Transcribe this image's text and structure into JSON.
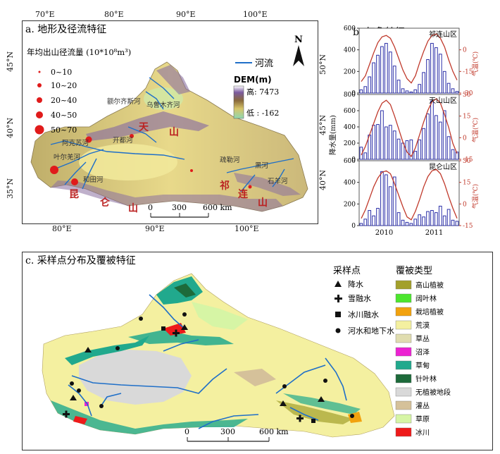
{
  "panel_a": {
    "title": "a. 地形及径流特征",
    "top_lon": [
      "70°E",
      "80°E",
      "90°E",
      "100°E"
    ],
    "bottom_lon": [
      "80°E",
      "90°E",
      "100°E"
    ],
    "left_lat": [
      "45°N",
      "40°N",
      "35°N"
    ],
    "right_lat": [
      "50°N",
      "45°N",
      "40°N"
    ],
    "runoff_title": "年均出山径流量 (10*10⁸m³)",
    "runoff_classes": [
      "0~10",
      "10~20",
      "20~40",
      "40~50",
      "50~70"
    ],
    "river_legend": "河流",
    "dem_title": "DEM(m)",
    "dem_high": "高: 7473",
    "dem_low": "低 : -162",
    "north": "N",
    "scale": [
      "0",
      "300",
      "600 km"
    ],
    "river_names": [
      "额尔齐斯河",
      "乌鲁木齐河",
      "开都河",
      "阿克苏河",
      "叶尔羌河",
      "和田河",
      "疏勒河",
      "黑河",
      "石羊河"
    ],
    "mountains": [
      "天",
      "山",
      "昆",
      "仑",
      "山",
      "祁",
      "连",
      "山"
    ]
  },
  "panel_b": {
    "title": "b. 气象特征",
    "years": [
      "2010",
      "2011"
    ],
    "y_label_left": "降水量(mm)",
    "y_label_right": "气温(℃)",
    "subplots": [
      {
        "name": "祁连山区",
        "left_ticks": [
          "0",
          "200",
          "400",
          "600"
        ],
        "right_ticks": [
          "0",
          "-15",
          "-30"
        ],
        "precip": [
          30,
          60,
          150,
          280,
          350,
          430,
          460,
          380,
          250,
          120,
          40,
          20,
          10,
          30,
          80,
          190,
          310,
          460,
          420,
          360,
          200,
          90,
          40,
          15
        ],
        "temp": [
          -22,
          -18,
          -10,
          -2,
          5,
          9,
          10,
          8,
          2,
          -6,
          -14,
          -20,
          -23,
          -18,
          -9,
          -1,
          6,
          10,
          11,
          8,
          2,
          -7,
          -15,
          -21
        ]
      },
      {
        "name": "天山山区",
        "left_ticks": [
          "0",
          "200",
          "400",
          "600",
          "800"
        ],
        "right_ticks": [
          "30",
          "15",
          "0",
          "-15"
        ],
        "precip": [
          150,
          80,
          300,
          420,
          430,
          600,
          400,
          420,
          350,
          250,
          200,
          230,
          240,
          100,
          240,
          380,
          560,
          720,
          540,
          460,
          600,
          280,
          120,
          90
        ],
        "temp": [
          -12,
          -6,
          2,
          10,
          18,
          24,
          26,
          23,
          15,
          6,
          -3,
          -10,
          -13,
          -7,
          2,
          11,
          19,
          25,
          27,
          24,
          16,
          7,
          -4,
          -11
        ]
      },
      {
        "name": "昆仑山区",
        "left_ticks": [
          "0",
          "200",
          "400",
          "600"
        ],
        "right_ticks": [
          "30",
          "15",
          "0",
          "-15"
        ],
        "precip": [
          20,
          60,
          140,
          90,
          160,
          500,
          470,
          360,
          450,
          120,
          50,
          30,
          20,
          60,
          100,
          80,
          130,
          140,
          120,
          180,
          90,
          150,
          50,
          40
        ],
        "temp": [
          -10,
          -4,
          4,
          12,
          18,
          22,
          23,
          21,
          14,
          6,
          -2,
          -9,
          -11,
          -5,
          3,
          12,
          19,
          23,
          24,
          21,
          14,
          5,
          -3,
          -10
        ]
      }
    ]
  },
  "panel_c": {
    "title": "c. 采样点分布及覆被特征",
    "sample_title": "采样点",
    "sample_types": [
      "降水",
      "雪融水",
      "冰川融水",
      "河水和地下水"
    ],
    "cover_title": "覆被类型",
    "cover_types": [
      {
        "name": "高山植被",
        "color": "#a3a02b"
      },
      {
        "name": "阔叶林",
        "color": "#4ce62e"
      },
      {
        "name": "栽培植被",
        "color": "#f2a20e"
      },
      {
        "name": "荒漠",
        "color": "#f4f0a0"
      },
      {
        "name": "草丛",
        "color": "#e0ddb0"
      },
      {
        "name": "沼泽",
        "color": "#ec23d2"
      },
      {
        "name": "草甸",
        "color": "#21a98d"
      },
      {
        "name": "针叶林",
        "color": "#1d6a3a"
      },
      {
        "name": "无植被地段",
        "color": "#d9d9d9"
      },
      {
        "name": "灌丛",
        "color": "#d5c19a"
      },
      {
        "name": "草原",
        "color": "#d6f5a5"
      },
      {
        "name": "冰川",
        "color": "#ee1a1a"
      }
    ],
    "scale": [
      "0",
      "300",
      "600 km"
    ]
  },
  "colors": {
    "river": "#1f6fc8",
    "bar": "#2b2fa8",
    "temp": "#c0392b",
    "runoff": "#e01b1b"
  }
}
